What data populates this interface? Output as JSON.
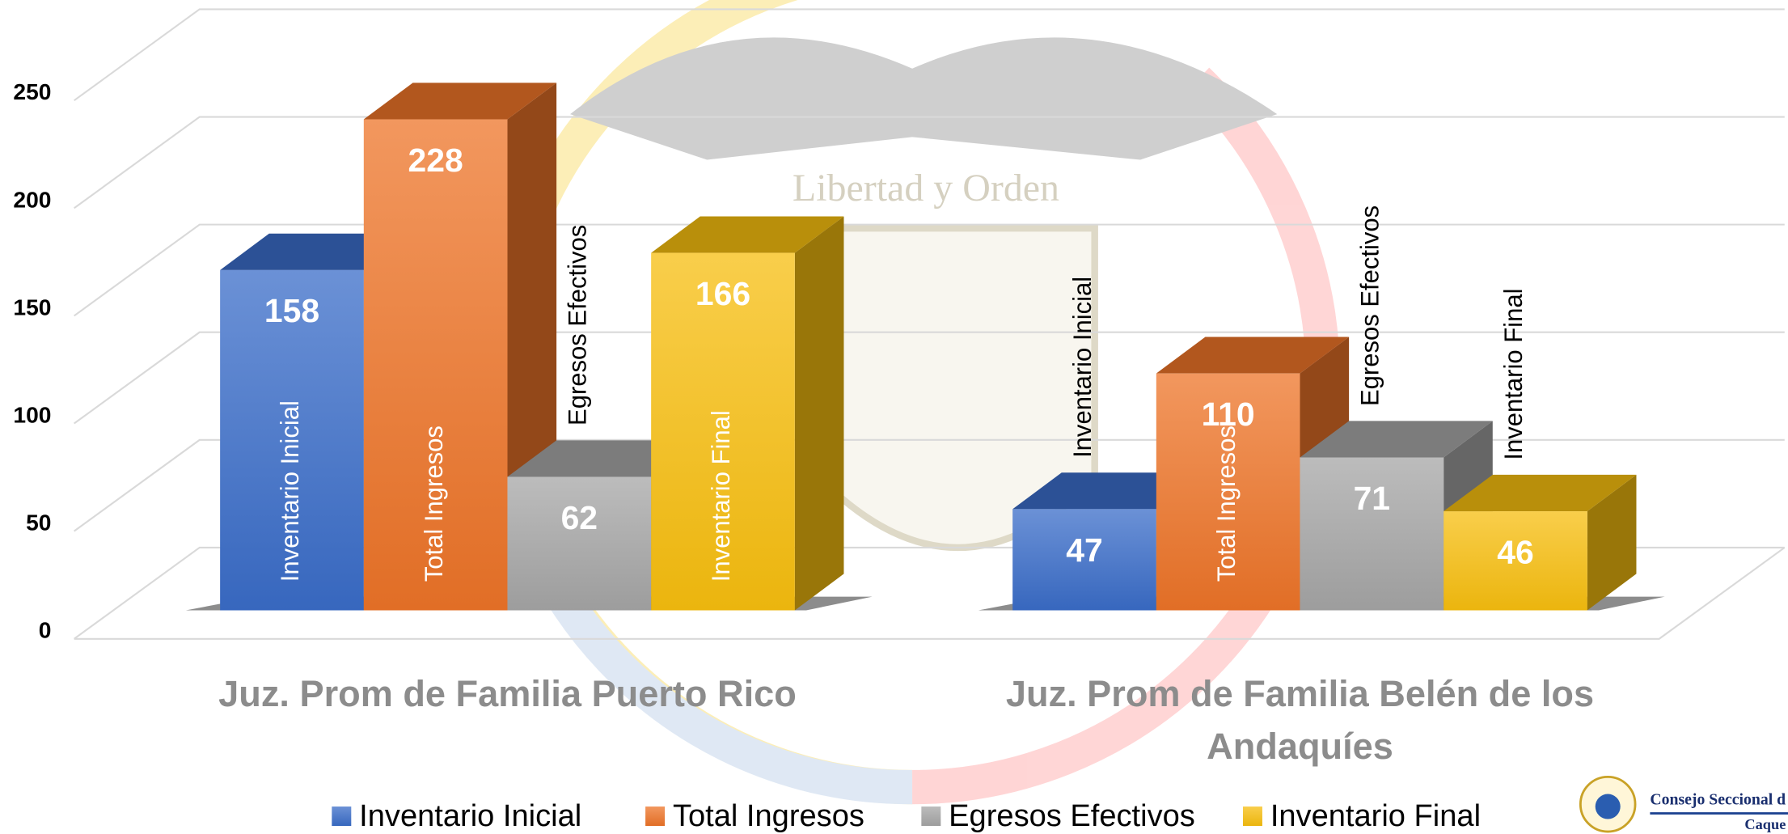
{
  "chart_data": {
    "type": "bar3d",
    "categories": [
      "Juz. Prom de Familia Puerto Rico",
      "Juz. Prom de Familia Belén de los Andaquíes"
    ],
    "series": [
      {
        "name": "Inventario Inicial",
        "color": "#3a6cc8",
        "values": [
          158,
          47
        ],
        "name_label_color": "#ffffff"
      },
      {
        "name": "Total Ingresos",
        "color": "#ed7428",
        "values": [
          228,
          110
        ],
        "name_label_color": "#ffffff"
      },
      {
        "name": "Egresos Efectivos",
        "color": "#a5a5a5",
        "values": [
          62,
          71
        ],
        "name_label_color": "#000000"
      },
      {
        "name": "Inventario Final",
        "color": "#f7be0f",
        "values": [
          166,
          46
        ],
        "name_label_color": "#ffffff"
      }
    ],
    "ylim": [
      0,
      250
    ],
    "yticks": [
      0,
      50,
      100,
      150,
      200,
      250
    ],
    "grid": true,
    "legend": "bottom"
  },
  "emblem_motto": "Libertad y Orden",
  "logo": {
    "line1": "Consejo Seccional d",
    "line2": "Caque"
  }
}
